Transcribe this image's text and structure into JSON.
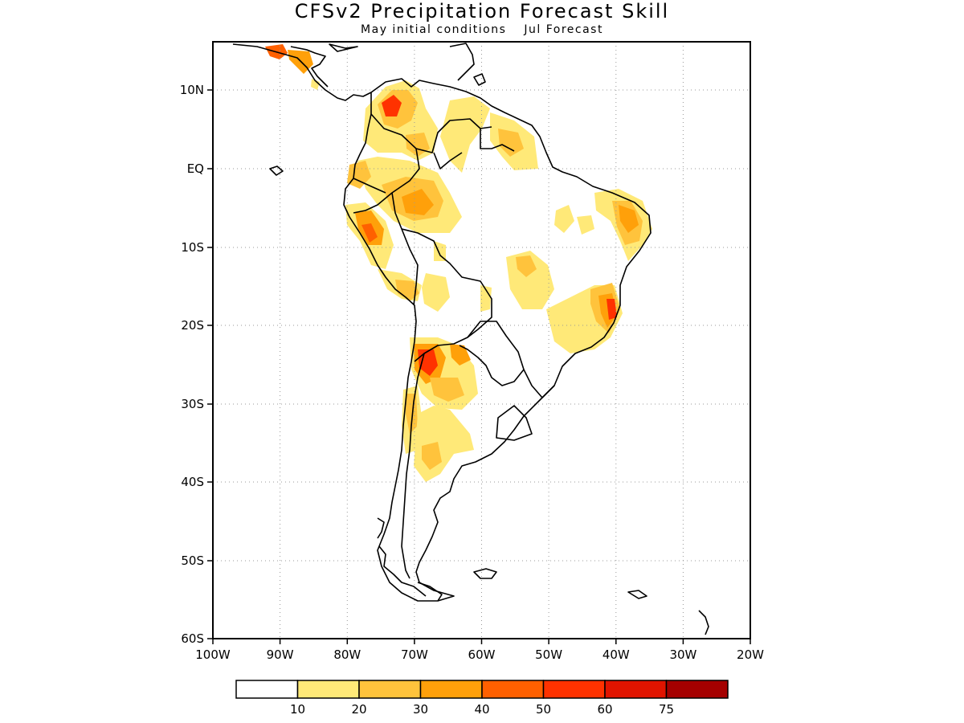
{
  "title": "CFSv2 Precipitation Forecast Skill",
  "subtitle": {
    "initial": "May initial conditions",
    "forecast": "Jul Forecast"
  },
  "map": {
    "lon_range": [
      -100,
      -20
    ],
    "lat_range": [
      -60,
      15
    ],
    "x_ticks": [
      "100W",
      "90W",
      "80W",
      "70W",
      "60W",
      "50W",
      "40W",
      "30W",
      "20W"
    ],
    "y_ticks": [
      "10N",
      "EQ",
      "10S",
      "20S",
      "30S",
      "40S",
      "50S",
      "60S"
    ],
    "grid": "dotted"
  },
  "colorbar": {
    "colors": [
      "#ffffff",
      "#ffe978",
      "#ffc33c",
      "#ffa00a",
      "#ff6000",
      "#ff3200",
      "#e11400",
      "#a50000"
    ],
    "labels": [
      "10",
      "20",
      "30",
      "40",
      "50",
      "60",
      "75"
    ]
  }
}
